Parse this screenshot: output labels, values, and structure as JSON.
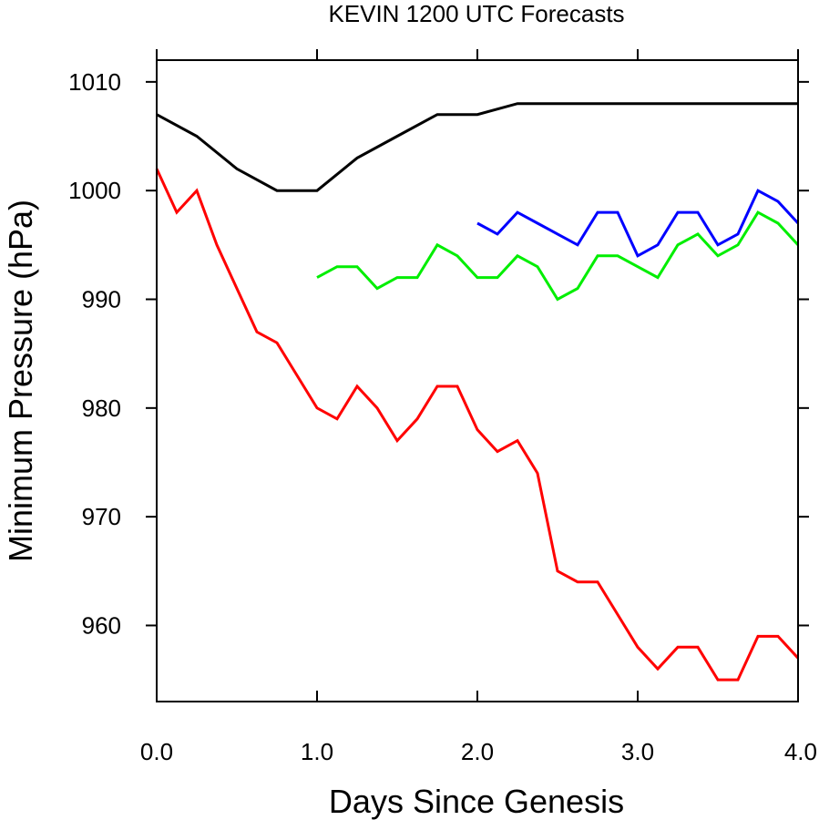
{
  "chart_data": {
    "type": "line",
    "title": "KEVIN 1200 UTC Forecasts",
    "xlabel": "Days Since Genesis",
    "ylabel": "Minimum Pressure (hPa)",
    "xlim": [
      0,
      4
    ],
    "ylim": [
      953,
      1012
    ],
    "xticks": [
      0,
      1,
      2,
      3,
      4
    ],
    "xtick_labels": [
      "0.0",
      "1.0",
      "2.0",
      "3.0",
      "4.0"
    ],
    "yticks": [
      960,
      970,
      980,
      990,
      1000,
      1010
    ],
    "ytick_labels": [
      "960",
      "970",
      "980",
      "990",
      "1000",
      "1010"
    ],
    "grid": false,
    "series": [
      {
        "color": "#000000",
        "x": [
          0,
          0.25,
          0.5,
          0.75,
          1.0,
          1.25,
          1.5,
          1.75,
          2.0,
          2.25,
          2.5,
          2.75,
          3.0,
          3.25,
          3.5,
          3.75,
          4.0
        ],
        "values": [
          1007,
          1005,
          1002,
          1000,
          1000,
          1003,
          1005,
          1007,
          1007,
          1008,
          1008,
          1008,
          1008,
          1008,
          1008,
          1008,
          1008
        ]
      },
      {
        "color": "#ff0000",
        "x": [
          0,
          0.125,
          0.25,
          0.375,
          0.5,
          0.625,
          0.75,
          0.875,
          1.0,
          1.125,
          1.25,
          1.375,
          1.5,
          1.625,
          1.75,
          1.875,
          2.0,
          2.125,
          2.25,
          2.375,
          2.5,
          2.625,
          2.75,
          2.875,
          3.0,
          3.125,
          3.25,
          3.375,
          3.5,
          3.625,
          3.75,
          3.875,
          4.0
        ],
        "values": [
          1002,
          998,
          1000,
          995,
          991,
          987,
          986,
          983,
          980,
          979,
          982,
          980,
          977,
          979,
          982,
          982,
          978,
          976,
          977,
          974,
          965,
          964,
          964,
          961,
          958,
          956,
          958,
          958,
          955,
          955,
          959,
          959,
          957
        ]
      },
      {
        "color": "#00ee00",
        "x": [
          1.0,
          1.125,
          1.25,
          1.375,
          1.5,
          1.625,
          1.75,
          1.875,
          2.0,
          2.125,
          2.25,
          2.375,
          2.5,
          2.625,
          2.75,
          2.875,
          3.0,
          3.125,
          3.25,
          3.375,
          3.5,
          3.625,
          3.75,
          3.875,
          4.0
        ],
        "values": [
          992,
          993,
          993,
          991,
          992,
          992,
          995,
          994,
          992,
          992,
          994,
          993,
          990,
          991,
          994,
          994,
          993,
          992,
          995,
          996,
          994,
          995,
          998,
          997,
          995
        ]
      },
      {
        "color": "#0000ff",
        "x": [
          2.0,
          2.125,
          2.25,
          2.375,
          2.5,
          2.625,
          2.75,
          2.875,
          3.0,
          3.125,
          3.25,
          3.375,
          3.5,
          3.625,
          3.75,
          3.875,
          4.0
        ],
        "values": [
          997,
          996,
          998,
          997,
          996,
          995,
          998,
          998,
          994,
          995,
          998,
          998,
          995,
          996,
          1000,
          999,
          997
        ]
      }
    ]
  }
}
